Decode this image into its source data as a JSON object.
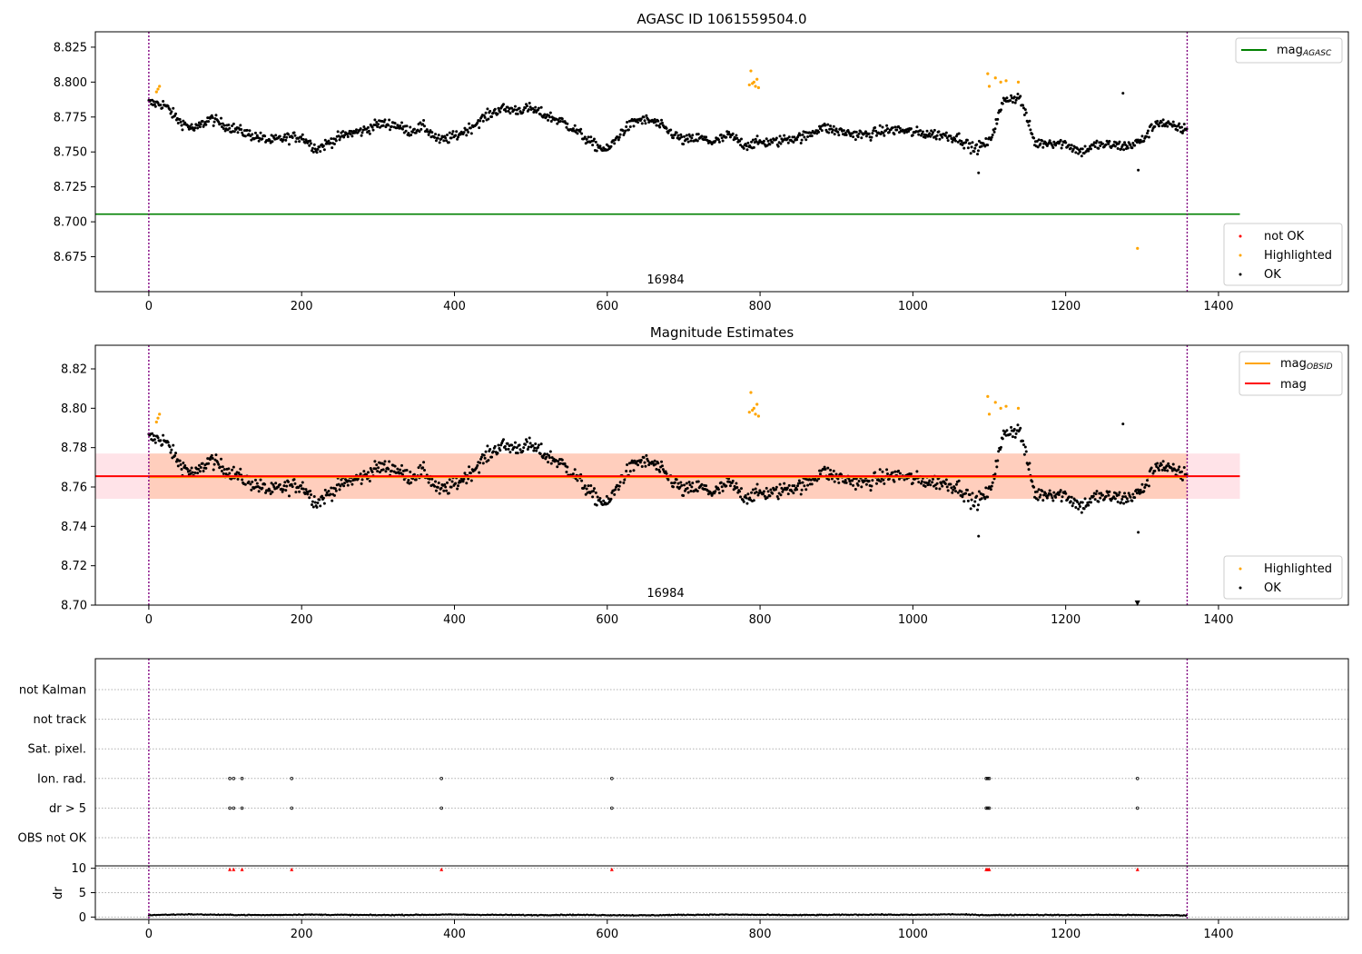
{
  "chart_data": [
    {
      "type": "scatter",
      "title": "AGASC ID 1061559504.0",
      "x_range": [
        -70,
        1570
      ],
      "ylim": [
        8.65,
        8.836
      ],
      "x_ticks": [
        "0",
        "200",
        "400",
        "600",
        "800",
        "1000",
        "1200",
        "1400"
      ],
      "y_ticks": [
        "8.675",
        "8.700",
        "8.725",
        "8.750",
        "8.775",
        "8.800",
        "8.825"
      ],
      "vlines": [
        0,
        1359
      ],
      "vline_color": "#800080",
      "obsid_label": "16984",
      "hline": {
        "name": "mag_AGASC",
        "value": 8.7055,
        "x": [
          -70,
          1428
        ],
        "color": "#008000"
      },
      "legend_upper": [
        {
          "name": "mag",
          "sub": "AGASC",
          "color": "#008000"
        }
      ],
      "legend_lower": [
        {
          "name": "not OK",
          "color": "#ff0000"
        },
        {
          "name": "Highlighted",
          "color": "#ffa500"
        },
        {
          "name": "OK",
          "color": "#000000"
        }
      ],
      "series": [
        {
          "name": "OK",
          "color": "#000000",
          "segments": [
            [
              0,
              8.785
            ],
            [
              20,
              8.784
            ],
            [
              40,
              8.772
            ],
            [
              60,
              8.766
            ],
            [
              80,
              8.774
            ],
            [
              100,
              8.769
            ],
            [
              120,
              8.765
            ],
            [
              140,
              8.761
            ],
            [
              160,
              8.758
            ],
            [
              180,
              8.76
            ],
            [
              200,
              8.761
            ],
            [
              220,
              8.752
            ],
            [
              240,
              8.758
            ],
            [
              260,
              8.763
            ],
            [
              280,
              8.765
            ],
            [
              300,
              8.77
            ],
            [
              320,
              8.77
            ],
            [
              340,
              8.765
            ],
            [
              360,
              8.768
            ],
            [
              380,
              8.758
            ],
            [
              400,
              8.761
            ],
            [
              420,
              8.767
            ],
            [
              440,
              8.775
            ],
            [
              460,
              8.781
            ],
            [
              480,
              8.78
            ],
            [
              500,
              8.781
            ],
            [
              520,
              8.776
            ],
            [
              540,
              8.772
            ],
            [
              560,
              8.765
            ],
            [
              580,
              8.756
            ],
            [
              600,
              8.751
            ],
            [
              620,
              8.765
            ],
            [
              640,
              8.773
            ],
            [
              660,
              8.772
            ],
            [
              680,
              8.765
            ],
            [
              700,
              8.758
            ],
            [
              720,
              8.76
            ],
            [
              740,
              8.757
            ],
            [
              760,
              8.762
            ],
            [
              780,
              8.755
            ],
            [
              800,
              8.757
            ],
            [
              820,
              8.757
            ],
            [
              840,
              8.76
            ],
            [
              860,
              8.761
            ],
            [
              880,
              8.768
            ],
            [
              900,
              8.765
            ],
            [
              920,
              8.763
            ],
            [
              940,
              8.762
            ],
            [
              960,
              8.765
            ],
            [
              980,
              8.766
            ],
            [
              1000,
              8.764
            ],
            [
              1020,
              8.763
            ],
            [
              1040,
              8.762
            ],
            [
              1060,
              8.76
            ],
            [
              1080,
              8.752
            ],
            [
              1100,
              8.757
            ],
            [
              1120,
              8.788
            ],
            [
              1140,
              8.789
            ],
            [
              1160,
              8.756
            ],
            [
              1180,
              8.757
            ],
            [
              1200,
              8.756
            ],
            [
              1220,
              8.75
            ],
            [
              1240,
              8.755
            ],
            [
              1260,
              8.755
            ],
            [
              1280,
              8.754
            ],
            [
              1300,
              8.758
            ],
            [
              1320,
              8.772
            ],
            [
              1340,
              8.768
            ],
            [
              1359,
              8.766
            ]
          ],
          "extra": [
            [
              1086,
              8.735
            ],
            [
              1275,
              8.792
            ],
            [
              1295,
              8.737
            ]
          ]
        },
        {
          "name": "Highlighted",
          "color": "#ffa500",
          "points": [
            [
              10,
              8.793
            ],
            [
              12,
              8.795
            ],
            [
              14,
              8.797
            ],
            [
              786,
              8.798
            ],
            [
              788,
              8.808
            ],
            [
              790,
              8.799
            ],
            [
              792,
              8.8
            ],
            [
              794,
              8.797
            ],
            [
              796,
              8.802
            ],
            [
              798,
              8.796
            ],
            [
              1098,
              8.806
            ],
            [
              1100,
              8.797
            ],
            [
              1108,
              8.803
            ],
            [
              1115,
              8.8
            ],
            [
              1122,
              8.801
            ],
            [
              1138,
              8.8
            ],
            [
              1294,
              8.681
            ]
          ]
        }
      ]
    },
    {
      "type": "scatter",
      "title": "Magnitude Estimates",
      "x_range": [
        -70,
        1570
      ],
      "ylim": [
        8.7,
        8.832
      ],
      "x_ticks": [
        "0",
        "200",
        "400",
        "600",
        "800",
        "1000",
        "1200",
        "1400"
      ],
      "y_ticks": [
        "8.70",
        "8.72",
        "8.74",
        "8.76",
        "8.78",
        "8.80",
        "8.82"
      ],
      "vlines": [
        0,
        1359
      ],
      "obsid_label": "16984",
      "band_outer": {
        "y": [
          8.754,
          8.777
        ],
        "x": [
          -70,
          1428
        ],
        "color": "#ffc0cb"
      },
      "band_inner": {
        "y": [
          8.754,
          8.777
        ],
        "x": [
          0,
          1359
        ],
        "color": "#ffb38a"
      },
      "mag_obsid": {
        "value": 8.765,
        "x": [
          0,
          1359
        ],
        "color": "#ffa500"
      },
      "mag_line": {
        "value": 8.7655,
        "x": [
          -70,
          1428
        ],
        "color": "#ff0000"
      },
      "legend_upper": [
        {
          "name": "mag",
          "sub": "OBSID",
          "color": "#ffa500"
        },
        {
          "name": "mag",
          "sub": "",
          "color": "#ff0000"
        }
      ],
      "legend_lower": [
        {
          "name": "Highlighted",
          "color": "#ffa500"
        },
        {
          "name": "OK",
          "color": "#000000"
        }
      ],
      "highlighted_below_axis": {
        "x": 1294,
        "marker": "▼"
      }
    },
    {
      "type": "scatter",
      "title": "",
      "x_range": [
        -70,
        1570
      ],
      "categories": [
        "not Kalman",
        "not track",
        "Sat. pixel.",
        "Ion. rad.",
        "dr > 5",
        "OBS not OK"
      ],
      "flag_points": {
        "Ion. rad.": [
          106,
          111,
          122,
          187,
          383,
          606,
          1096,
          1098,
          1100,
          1294
        ],
        "dr > 5": [
          106,
          111,
          122,
          187,
          383,
          606,
          1096,
          1098,
          1100,
          1294
        ]
      },
      "dr_panel": {
        "ylabel": "dr",
        "y_ticks": [
          "0",
          "5",
          "10"
        ],
        "ylim": [
          -0.5,
          10.5
        ],
        "baseline_series": [
          [
            0,
            0.4
          ],
          [
            50,
            0.55
          ],
          [
            100,
            0.45
          ],
          [
            150,
            0.4
          ],
          [
            200,
            0.5
          ],
          [
            250,
            0.45
          ],
          [
            300,
            0.4
          ],
          [
            350,
            0.45
          ],
          [
            400,
            0.5
          ],
          [
            450,
            0.45
          ],
          [
            500,
            0.4
          ],
          [
            550,
            0.45
          ],
          [
            600,
            0.4
          ],
          [
            650,
            0.35
          ],
          [
            700,
            0.45
          ],
          [
            750,
            0.5
          ],
          [
            800,
            0.45
          ],
          [
            850,
            0.4
          ],
          [
            900,
            0.45
          ],
          [
            950,
            0.5
          ],
          [
            1000,
            0.45
          ],
          [
            1050,
            0.55
          ],
          [
            1100,
            0.4
          ],
          [
            1150,
            0.45
          ],
          [
            1200,
            0.4
          ],
          [
            1250,
            0.45
          ],
          [
            1300,
            0.4
          ],
          [
            1359,
            0.35
          ]
        ],
        "outliers": [
          106,
          111,
          122,
          187,
          383,
          606,
          1096,
          1098,
          1100,
          1294
        ],
        "outlier_value": 9.8
      },
      "vlines": [
        0,
        1359
      ],
      "x_ticks": [
        "0",
        "200",
        "400",
        "600",
        "800",
        "1000",
        "1200",
        "1400"
      ]
    }
  ]
}
